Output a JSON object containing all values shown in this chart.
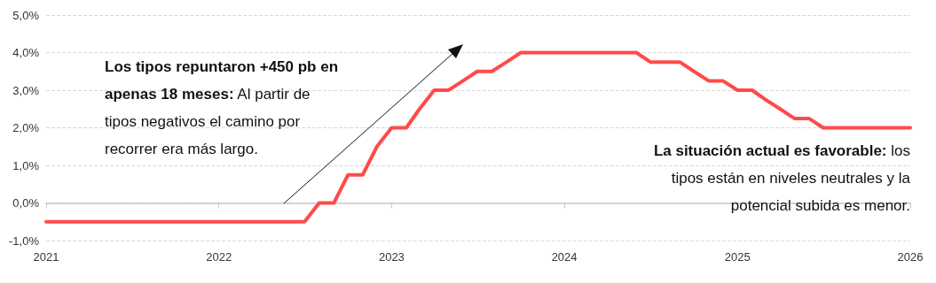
{
  "chart_data": {
    "type": "line",
    "annotations": [
      "Los tipos repuntaron +450 pb en apenas 18 meses: Al partir de tipos negativos el camino por recorrer era más largo.",
      "La situación actual es favorable: los tipos están en niveles neutrales y la potencial subida es menor."
    ],
    "x": [
      "2021-01",
      "2021-02",
      "2021-03",
      "2021-04",
      "2021-05",
      "2021-06",
      "2021-07",
      "2021-08",
      "2021-09",
      "2021-10",
      "2021-11",
      "2021-12",
      "2022-01",
      "2022-02",
      "2022-03",
      "2022-04",
      "2022-05",
      "2022-06",
      "2022-07",
      "2022-08",
      "2022-09",
      "2022-10",
      "2022-11",
      "2022-12",
      "2023-01",
      "2023-02",
      "2023-03",
      "2023-04",
      "2023-05",
      "2023-06",
      "2023-07",
      "2023-08",
      "2023-09",
      "2023-10",
      "2023-11",
      "2023-12",
      "2024-01",
      "2024-02",
      "2024-03",
      "2024-04",
      "2024-05",
      "2024-06",
      "2024-07",
      "2024-08",
      "2024-09",
      "2024-10",
      "2024-11",
      "2024-12",
      "2025-01",
      "2025-02",
      "2025-03",
      "2025-04",
      "2025-05",
      "2025-06",
      "2025-07",
      "2025-08",
      "2025-09",
      "2025-10",
      "2025-11",
      "2025-12",
      "2026-01"
    ],
    "series": [
      {
        "color": "#ff4a4a",
        "values": [
          -0.5,
          -0.5,
          -0.5,
          -0.5,
          -0.5,
          -0.5,
          -0.5,
          -0.5,
          -0.5,
          -0.5,
          -0.5,
          -0.5,
          -0.5,
          -0.5,
          -0.5,
          -0.5,
          -0.5,
          -0.5,
          -0.5,
          0,
          0,
          0.75,
          0.75,
          1.5,
          2.0,
          2.0,
          2.5,
          3.0,
          3.0,
          3.25,
          3.5,
          3.5,
          3.75,
          4.0,
          4.0,
          4.0,
          4.0,
          4.0,
          4.0,
          4.0,
          4.0,
          4.0,
          3.75,
          3.75,
          3.75,
          3.5,
          3.25,
          3.25,
          3.0,
          3.0,
          2.75,
          2.5,
          2.25,
          2.25,
          2.0,
          2.0,
          2.0,
          2.0,
          2.0,
          2.0,
          2.0
        ]
      }
    ],
    "xlim": [
      "2021-01",
      "2026-01"
    ],
    "xticks": [
      {
        "value": "2021",
        "label": "2021"
      },
      {
        "value": "2022",
        "label": "2022"
      },
      {
        "value": "2023",
        "label": "2023"
      },
      {
        "value": "2024",
        "label": "2024"
      },
      {
        "value": "2025",
        "label": "2025"
      },
      {
        "value": "2026",
        "label": "2026"
      }
    ],
    "ylim": [
      -1,
      5
    ],
    "yticks": [
      {
        "value": -1,
        "label": "-1,0%"
      },
      {
        "value": 0,
        "label": "0,0%"
      },
      {
        "value": 1,
        "label": "1,0%"
      },
      {
        "value": 2,
        "label": "2,0%"
      },
      {
        "value": 3,
        "label": "3,0%"
      },
      {
        "value": 4,
        "label": "4,0%"
      },
      {
        "value": 5,
        "label": "5,0%"
      }
    ],
    "grid": "y",
    "marker": "none",
    "line_style": "solid"
  }
}
